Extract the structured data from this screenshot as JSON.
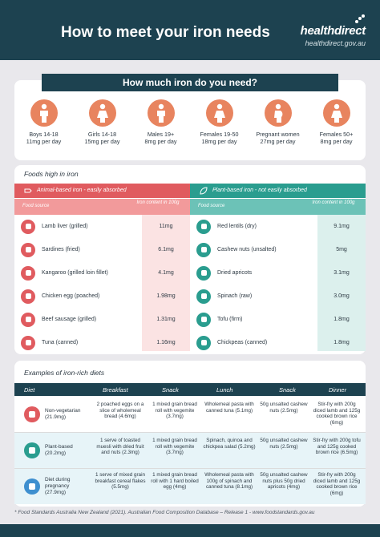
{
  "header": {
    "title": "How to meet your iron needs",
    "brand": "healthdirect",
    "url": "healthdirect.gov.au"
  },
  "needs": {
    "title": "How much iron do you need?",
    "groups": [
      {
        "label": "Boys 14-18",
        "amount": "11mg per day",
        "color": "#e8845f"
      },
      {
        "label": "Girls 14-18",
        "amount": "15mg per day",
        "color": "#e8845f"
      },
      {
        "label": "Males 19+",
        "amount": "8mg per day",
        "color": "#e8845f"
      },
      {
        "label": "Females 19-50",
        "amount": "18mg per day",
        "color": "#e8845f"
      },
      {
        "label": "Pregnant women",
        "amount": "27mg per day",
        "color": "#e8845f"
      },
      {
        "label": "Females 50+",
        "amount": "8mg per day",
        "color": "#e8845f"
      }
    ]
  },
  "foods": {
    "title": "Foods high in iron",
    "animal": {
      "heading": "Animal-based iron - easily absorbed",
      "col_source": "Food source",
      "col_content": "Iron content in 100g",
      "color": "#e05b5f",
      "items": [
        {
          "name": "Lamb liver (grilled)",
          "value": "11mg"
        },
        {
          "name": "Sardines (fried)",
          "value": "6.1mg"
        },
        {
          "name": "Kangaroo (grilled loin fillet)",
          "value": "4.1mg"
        },
        {
          "name": "Chicken egg (poached)",
          "value": "1.98mg"
        },
        {
          "name": "Beef sausage (grilled)",
          "value": "1.31mg"
        },
        {
          "name": "Tuna (canned)",
          "value": "1.16mg"
        }
      ]
    },
    "plant": {
      "heading": "Plant-based iron - not easily absorbed",
      "col_source": "Food source",
      "col_content": "Iron content in 100g",
      "color": "#2a9d8f",
      "items": [
        {
          "name": "Red lentils (dry)",
          "value": "9.1mg"
        },
        {
          "name": "Cashew nuts (unsalted)",
          "value": "5mg"
        },
        {
          "name": "Dried apricots",
          "value": "3.1mg"
        },
        {
          "name": "Spinach (raw)",
          "value": "3.0mg"
        },
        {
          "name": "Tofu (firm)",
          "value": "1.8mg"
        },
        {
          "name": "Chickpeas (canned)",
          "value": "1.8mg"
        }
      ]
    }
  },
  "diets": {
    "title": "Examples of iron-rich diets",
    "columns": [
      "Diet",
      "Breakfast",
      "Snack",
      "Lunch",
      "Snack",
      "Dinner"
    ],
    "rows": [
      {
        "name": "Non-vegetarian (21.9mg)",
        "color": "#e05b5f",
        "breakfast": "2 poached eggs on a slice of wholemeal bread (4.6mg)",
        "snack1": "1 mixed grain bread roll with vegemite (3.7mg)",
        "lunch": "Wholemeal pasta with canned tuna (5.1mg)",
        "snack2": "50g unsalted cashew nuts (2.5mg)",
        "dinner": "Stir-fry with 200g diced lamb and 125g cooked brown rice (6mg)"
      },
      {
        "name": "Plant-based (20.2mg)",
        "color": "#2a9d8f",
        "breakfast": "1 serve of toasted muesli with dried fruit and nuts (2.3mg)",
        "snack1": "1 mixed grain bread roll with vegemite (3.7mg)",
        "lunch": "Spinach, quinoa and chickpea salad (5.2mg)",
        "snack2": "50g unsalted cashew nuts (2.5mg)",
        "dinner": "Stir-fry with 200g tofu and 125g cooked brown rice (6.5mg)"
      },
      {
        "name": "Diet during pregnancy (27.9mg)",
        "color": "#3e8fcf",
        "breakfast": "1 serve of mixed grain breakfast cereal flakes (5.5mg)",
        "snack1": "1 mixed grain bread roll with 1 hard boiled egg (4mg)",
        "lunch": "Wholemeal pasta with 100g of spinach and canned tuna (8.1mg)",
        "snack2": "50g unsalted cashew nuts plus 50g dried apricots (4mg)",
        "dinner": "Stir-fry with 200g diced lamb and 125g cooked brown rice (6mg)"
      }
    ]
  },
  "footnote": "* Food Standards Australia New Zealand (2021). Australian Food Composition Database – Release 1 - www.foodstandards.gov.au"
}
